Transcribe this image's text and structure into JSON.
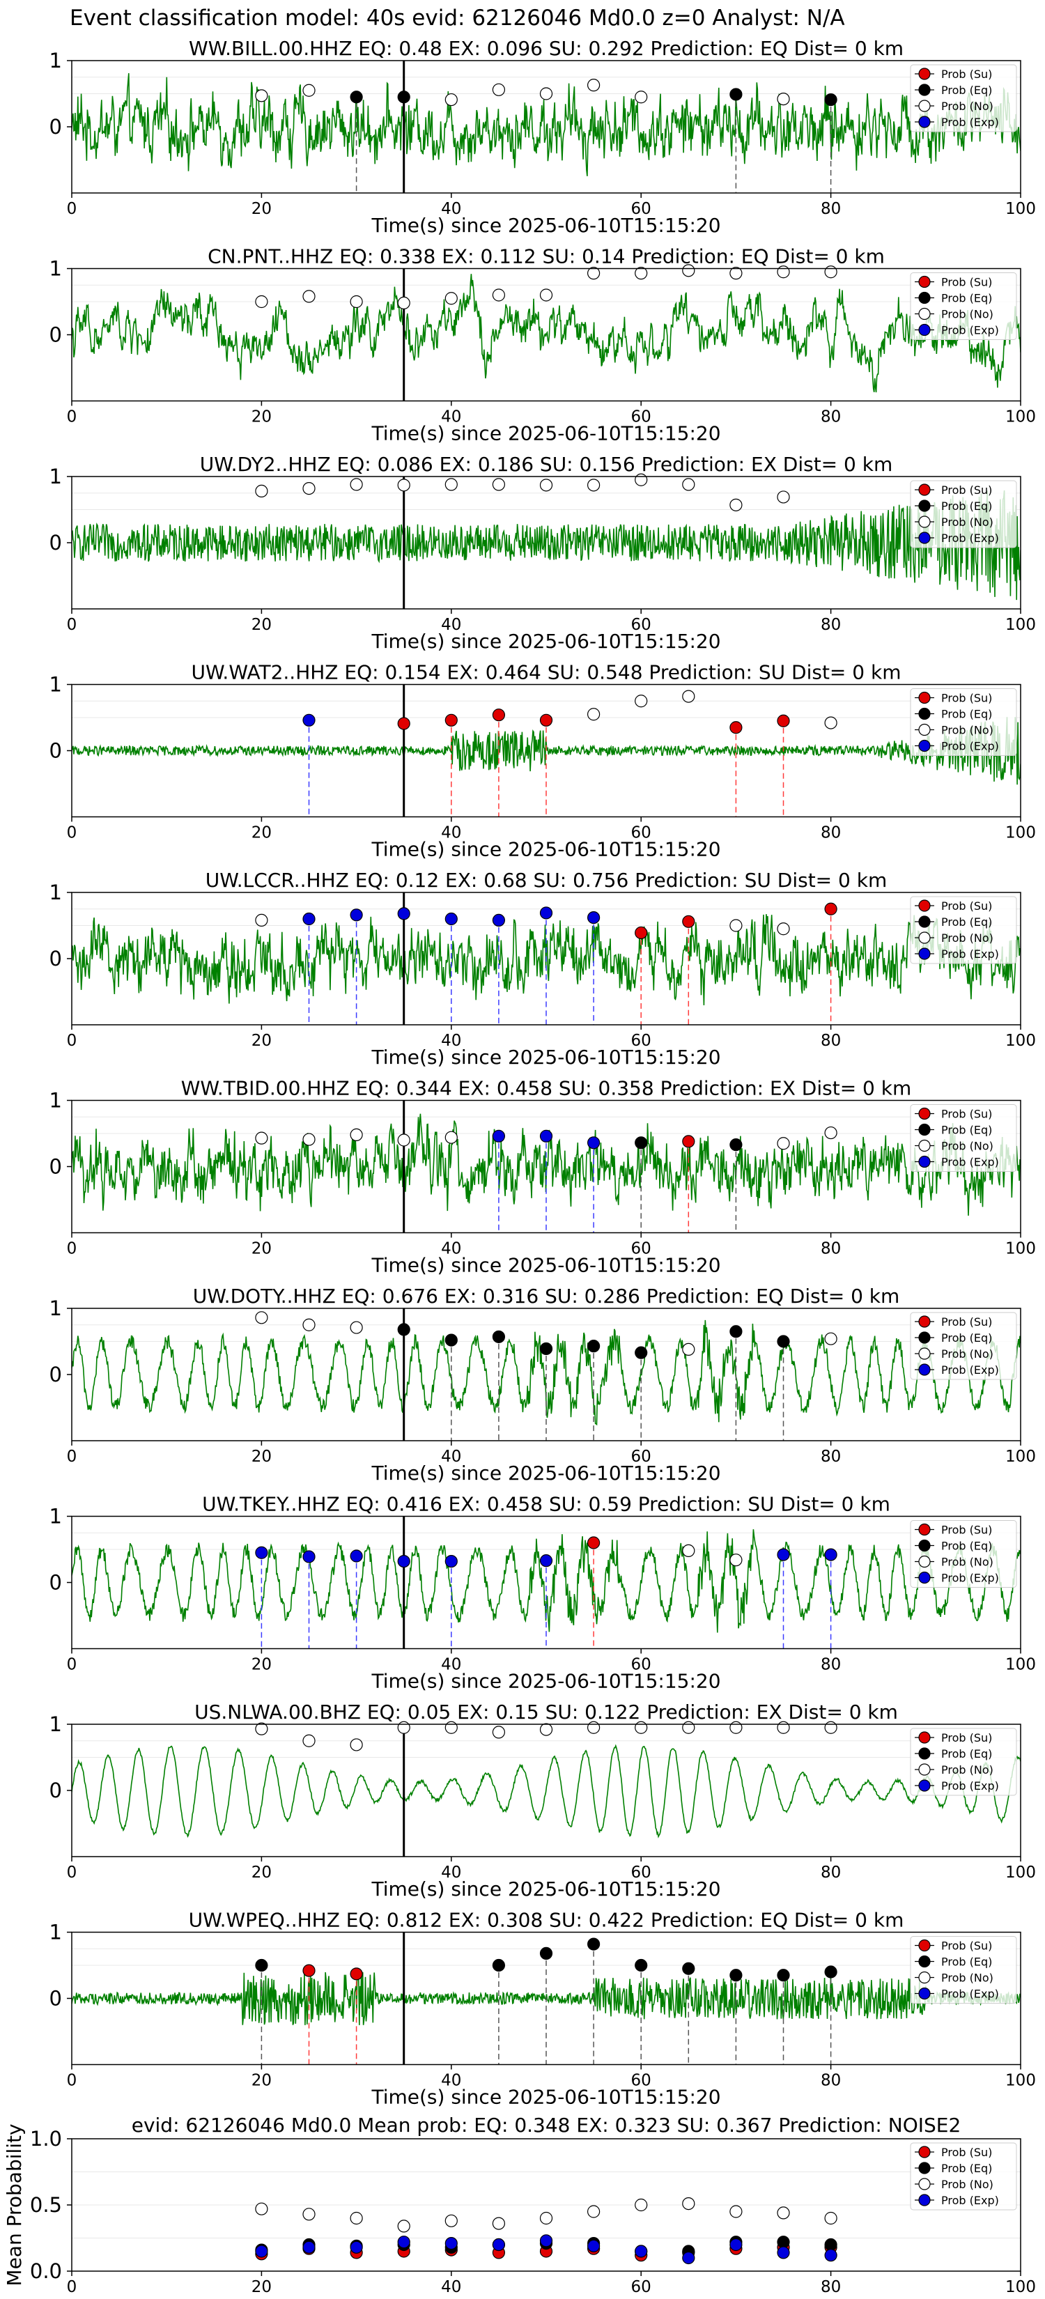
{
  "figure": {
    "suptitle": "Event classification model: 40s evid: 62126046 Md0.0 z=0 Analyst: N/A"
  },
  "legend_labels": [
    "Prob (Su)",
    "Prob (Eq)",
    "Prob (No)",
    "Prob (Exp)"
  ],
  "colors": {
    "su": "#e00000",
    "eq": "#000000",
    "no": "#ffffff",
    "exp": "#0000dd",
    "waveform": "#008000",
    "pick": "#000000"
  },
  "xlabel": "Time(s) since 2025-06-10T15:15:20",
  "chart_data": [
    {
      "type": "line",
      "title": "WW.BILL.00.HHZ   EQ: 0.48  EX: 0.096  SU: 0.292   Prediction: EQ    Dist= 0 km",
      "xlabel": "Time(s) since 2025-06-10T15:15:20",
      "xlim": [
        0,
        100
      ],
      "ylim": [
        -1,
        1
      ],
      "yticks": [
        0,
        1
      ],
      "xticks": [
        0,
        20,
        40,
        60,
        80,
        100
      ],
      "pick_time": 35,
      "waveform_style": "noisy",
      "legend": [
        "Prob (Su)",
        "Prob (Eq)",
        "Prob (No)",
        "Prob (Exp)"
      ],
      "points": [
        {
          "x": 20,
          "y": 0.47,
          "c": "no"
        },
        {
          "x": 25,
          "y": 0.55,
          "c": "no"
        },
        {
          "x": 30,
          "y": 0.45,
          "c": "eq"
        },
        {
          "x": 35,
          "y": 0.45,
          "c": "eq"
        },
        {
          "x": 40,
          "y": 0.41,
          "c": "no"
        },
        {
          "x": 45,
          "y": 0.56,
          "c": "no"
        },
        {
          "x": 50,
          "y": 0.5,
          "c": "no"
        },
        {
          "x": 55,
          "y": 0.63,
          "c": "no"
        },
        {
          "x": 60,
          "y": 0.45,
          "c": "no"
        },
        {
          "x": 70,
          "y": 0.49,
          "c": "eq"
        },
        {
          "x": 75,
          "y": 0.42,
          "c": "no"
        },
        {
          "x": 80,
          "y": 0.41,
          "c": "eq"
        }
      ]
    },
    {
      "type": "line",
      "title": "CN.PNT..HHZ   EQ: 0.338  EX: 0.112  SU: 0.14   Prediction: EQ    Dist= 0 km",
      "xlabel": "Time(s) since 2025-06-10T15:15:20",
      "xlim": [
        0,
        100
      ],
      "ylim": [
        -1,
        1
      ],
      "yticks": [
        0,
        1
      ],
      "xticks": [
        0,
        20,
        40,
        60,
        80,
        100
      ],
      "pick_time": 35,
      "waveform_style": "lowfreq",
      "legend": [
        "Prob (Su)",
        "Prob (Eq)",
        "Prob (No)",
        "Prob (Exp)"
      ],
      "points": [
        {
          "x": 20,
          "y": 0.5,
          "c": "no"
        },
        {
          "x": 25,
          "y": 0.58,
          "c": "no"
        },
        {
          "x": 30,
          "y": 0.5,
          "c": "no"
        },
        {
          "x": 35,
          "y": 0.48,
          "c": "no"
        },
        {
          "x": 40,
          "y": 0.55,
          "c": "no"
        },
        {
          "x": 45,
          "y": 0.6,
          "c": "no"
        },
        {
          "x": 50,
          "y": 0.6,
          "c": "no"
        },
        {
          "x": 55,
          "y": 0.93,
          "c": "no"
        },
        {
          "x": 60,
          "y": 0.93,
          "c": "no"
        },
        {
          "x": 65,
          "y": 0.97,
          "c": "no"
        },
        {
          "x": 70,
          "y": 0.93,
          "c": "no"
        },
        {
          "x": 75,
          "y": 0.95,
          "c": "no"
        },
        {
          "x": 80,
          "y": 0.95,
          "c": "no"
        }
      ]
    },
    {
      "type": "line",
      "title": "UW.DY2..HHZ   EQ: 0.086  EX: 0.186  SU: 0.156   Prediction: EX    Dist= 0 km",
      "xlabel": "Time(s) since 2025-06-10T15:15:20",
      "xlim": [
        0,
        100
      ],
      "ylim": [
        -1,
        1
      ],
      "yticks": [
        0,
        1
      ],
      "xticks": [
        0,
        20,
        40,
        60,
        80,
        100
      ],
      "pick_time": 35,
      "waveform_style": "growing",
      "legend": [
        "Prob (Su)",
        "Prob (Eq)",
        "Prob (No)",
        "Prob (Exp)"
      ],
      "points": [
        {
          "x": 20,
          "y": 0.78,
          "c": "no"
        },
        {
          "x": 25,
          "y": 0.82,
          "c": "no"
        },
        {
          "x": 30,
          "y": 0.88,
          "c": "no"
        },
        {
          "x": 35,
          "y": 0.87,
          "c": "no"
        },
        {
          "x": 40,
          "y": 0.88,
          "c": "no"
        },
        {
          "x": 45,
          "y": 0.88,
          "c": "no"
        },
        {
          "x": 50,
          "y": 0.87,
          "c": "no"
        },
        {
          "x": 55,
          "y": 0.87,
          "c": "no"
        },
        {
          "x": 60,
          "y": 0.95,
          "c": "no"
        },
        {
          "x": 65,
          "y": 0.88,
          "c": "no"
        },
        {
          "x": 70,
          "y": 0.57,
          "c": "no"
        },
        {
          "x": 75,
          "y": 0.69,
          "c": "no"
        }
      ]
    },
    {
      "type": "line",
      "title": "UW.WAT2..HHZ   EQ: 0.154  EX: 0.464  SU: 0.548   Prediction: SU    Dist= 0 km",
      "xlabel": "Time(s) since 2025-06-10T15:15:20",
      "xlim": [
        0,
        100
      ],
      "ylim": [
        -1,
        1
      ],
      "yticks": [
        0,
        1
      ],
      "xticks": [
        0,
        20,
        40,
        60,
        80,
        100
      ],
      "pick_time": 35,
      "waveform_style": "quiet",
      "legend": [
        "Prob (Su)",
        "Prob (Eq)",
        "Prob (No)",
        "Prob (Exp)"
      ],
      "points": [
        {
          "x": 25,
          "y": 0.46,
          "c": "exp"
        },
        {
          "x": 35,
          "y": 0.41,
          "c": "su"
        },
        {
          "x": 40,
          "y": 0.46,
          "c": "su"
        },
        {
          "x": 45,
          "y": 0.54,
          "c": "su"
        },
        {
          "x": 50,
          "y": 0.46,
          "c": "su"
        },
        {
          "x": 55,
          "y": 0.55,
          "c": "no"
        },
        {
          "x": 60,
          "y": 0.75,
          "c": "no"
        },
        {
          "x": 65,
          "y": 0.82,
          "c": "no"
        },
        {
          "x": 70,
          "y": 0.35,
          "c": "su"
        },
        {
          "x": 75,
          "y": 0.45,
          "c": "su"
        },
        {
          "x": 80,
          "y": 0.42,
          "c": "no"
        }
      ]
    },
    {
      "type": "line",
      "title": "UW.LCCR..HHZ   EQ: 0.12  EX: 0.68  SU: 0.756   Prediction: SU    Dist= 0 km",
      "xlabel": "Time(s) since 2025-06-10T15:15:20",
      "xlim": [
        0,
        100
      ],
      "ylim": [
        -1,
        1
      ],
      "yticks": [
        0,
        1
      ],
      "xticks": [
        0,
        20,
        40,
        60,
        80,
        100
      ],
      "pick_time": 35,
      "waveform_style": "noisy",
      "legend": [
        "Prob (Su)",
        "Prob (Eq)",
        "Prob (No)",
        "Prob (Exp)"
      ],
      "points": [
        {
          "x": 20,
          "y": 0.58,
          "c": "no"
        },
        {
          "x": 25,
          "y": 0.6,
          "c": "exp"
        },
        {
          "x": 30,
          "y": 0.66,
          "c": "exp"
        },
        {
          "x": 35,
          "y": 0.68,
          "c": "exp"
        },
        {
          "x": 40,
          "y": 0.6,
          "c": "exp"
        },
        {
          "x": 45,
          "y": 0.58,
          "c": "exp"
        },
        {
          "x": 50,
          "y": 0.69,
          "c": "exp"
        },
        {
          "x": 55,
          "y": 0.62,
          "c": "exp"
        },
        {
          "x": 60,
          "y": 0.39,
          "c": "su"
        },
        {
          "x": 65,
          "y": 0.56,
          "c": "su"
        },
        {
          "x": 70,
          "y": 0.5,
          "c": "no"
        },
        {
          "x": 75,
          "y": 0.45,
          "c": "no"
        },
        {
          "x": 80,
          "y": 0.75,
          "c": "su"
        }
      ]
    },
    {
      "type": "line",
      "title": "WW.TBID.00.HHZ   EQ: 0.344  EX: 0.458  SU: 0.358   Prediction: EX    Dist= 0 km",
      "xlabel": "Time(s) since 2025-06-10T15:15:20",
      "xlim": [
        0,
        100
      ],
      "ylim": [
        -1,
        1
      ],
      "yticks": [
        0,
        1
      ],
      "xticks": [
        0,
        20,
        40,
        60,
        80,
        100
      ],
      "pick_time": 35,
      "waveform_style": "noisy",
      "legend": [
        "Prob (Su)",
        "Prob (Eq)",
        "Prob (No)",
        "Prob (Exp)"
      ],
      "points": [
        {
          "x": 20,
          "y": 0.43,
          "c": "no"
        },
        {
          "x": 25,
          "y": 0.41,
          "c": "no"
        },
        {
          "x": 30,
          "y": 0.48,
          "c": "no"
        },
        {
          "x": 35,
          "y": 0.4,
          "c": "no"
        },
        {
          "x": 40,
          "y": 0.44,
          "c": "no"
        },
        {
          "x": 45,
          "y": 0.46,
          "c": "exp"
        },
        {
          "x": 50,
          "y": 0.46,
          "c": "exp"
        },
        {
          "x": 55,
          "y": 0.36,
          "c": "exp"
        },
        {
          "x": 60,
          "y": 0.36,
          "c": "eq"
        },
        {
          "x": 65,
          "y": 0.38,
          "c": "su"
        },
        {
          "x": 70,
          "y": 0.33,
          "c": "eq"
        },
        {
          "x": 75,
          "y": 0.35,
          "c": "no"
        },
        {
          "x": 80,
          "y": 0.51,
          "c": "no"
        }
      ]
    },
    {
      "type": "line",
      "title": "UW.DOTY..HHZ   EQ: 0.676  EX: 0.316  SU: 0.286   Prediction: EQ    Dist= 0 km",
      "xlabel": "Time(s) since 2025-06-10T15:15:20",
      "xlim": [
        0,
        100
      ],
      "ylim": [
        -1,
        1
      ],
      "yticks": [
        0,
        1
      ],
      "xticks": [
        0,
        20,
        40,
        60,
        80,
        100
      ],
      "pick_time": 35,
      "waveform_style": "swell",
      "legend": [
        "Prob (Su)",
        "Prob (Eq)",
        "Prob (No)",
        "Prob (Exp)"
      ],
      "points": [
        {
          "x": 20,
          "y": 0.86,
          "c": "no"
        },
        {
          "x": 25,
          "y": 0.75,
          "c": "no"
        },
        {
          "x": 30,
          "y": 0.71,
          "c": "no"
        },
        {
          "x": 35,
          "y": 0.68,
          "c": "eq"
        },
        {
          "x": 40,
          "y": 0.52,
          "c": "eq"
        },
        {
          "x": 45,
          "y": 0.57,
          "c": "eq"
        },
        {
          "x": 50,
          "y": 0.39,
          "c": "eq"
        },
        {
          "x": 55,
          "y": 0.43,
          "c": "eq"
        },
        {
          "x": 60,
          "y": 0.33,
          "c": "eq"
        },
        {
          "x": 65,
          "y": 0.38,
          "c": "no"
        },
        {
          "x": 70,
          "y": 0.65,
          "c": "eq"
        },
        {
          "x": 75,
          "y": 0.5,
          "c": "eq"
        },
        {
          "x": 80,
          "y": 0.54,
          "c": "no"
        }
      ]
    },
    {
      "type": "line",
      "title": "UW.TKEY..HHZ   EQ: 0.416  EX: 0.458  SU: 0.59   Prediction: SU    Dist= 0 km",
      "xlabel": "Time(s) since 2025-06-10T15:15:20",
      "xlim": [
        0,
        100
      ],
      "ylim": [
        -1,
        1
      ],
      "yticks": [
        0,
        1
      ],
      "xticks": [
        0,
        20,
        40,
        60,
        80,
        100
      ],
      "pick_time": 35,
      "waveform_style": "swell",
      "legend": [
        "Prob (Su)",
        "Prob (Eq)",
        "Prob (No)",
        "Prob (Exp)"
      ],
      "points": [
        {
          "x": 20,
          "y": 0.45,
          "c": "exp"
        },
        {
          "x": 25,
          "y": 0.39,
          "c": "exp"
        },
        {
          "x": 30,
          "y": 0.4,
          "c": "exp"
        },
        {
          "x": 35,
          "y": 0.32,
          "c": "exp"
        },
        {
          "x": 40,
          "y": 0.32,
          "c": "exp"
        },
        {
          "x": 50,
          "y": 0.33,
          "c": "exp"
        },
        {
          "x": 55,
          "y": 0.6,
          "c": "su"
        },
        {
          "x": 65,
          "y": 0.48,
          "c": "no"
        },
        {
          "x": 70,
          "y": 0.34,
          "c": "no"
        },
        {
          "x": 75,
          "y": 0.42,
          "c": "exp"
        },
        {
          "x": 80,
          "y": 0.42,
          "c": "exp"
        }
      ]
    },
    {
      "type": "line",
      "title": "US.NLWA.00.BHZ   EQ: 0.05  EX: 0.15  SU: 0.122   Prediction: EX    Dist= 0 km",
      "xlabel": "Time(s) since 2025-06-10T15:15:20",
      "xlim": [
        0,
        100
      ],
      "ylim": [
        -1,
        1
      ],
      "yticks": [
        0,
        1
      ],
      "xticks": [
        0,
        20,
        40,
        60,
        80,
        100
      ],
      "pick_time": 35,
      "waveform_style": "microseism",
      "legend": [
        "Prob (Su)",
        "Prob (Eq)",
        "Prob (No)",
        "Prob (Exp)"
      ],
      "points": [
        {
          "x": 20,
          "y": 0.93,
          "c": "no"
        },
        {
          "x": 25,
          "y": 0.75,
          "c": "no"
        },
        {
          "x": 30,
          "y": 0.69,
          "c": "no"
        },
        {
          "x": 35,
          "y": 0.95,
          "c": "no"
        },
        {
          "x": 40,
          "y": 0.95,
          "c": "no"
        },
        {
          "x": 45,
          "y": 0.88,
          "c": "no"
        },
        {
          "x": 50,
          "y": 0.92,
          "c": "no"
        },
        {
          "x": 55,
          "y": 0.95,
          "c": "no"
        },
        {
          "x": 60,
          "y": 0.95,
          "c": "no"
        },
        {
          "x": 65,
          "y": 0.95,
          "c": "no"
        },
        {
          "x": 70,
          "y": 0.95,
          "c": "no"
        },
        {
          "x": 75,
          "y": 0.95,
          "c": "no"
        },
        {
          "x": 80,
          "y": 0.95,
          "c": "no"
        }
      ]
    },
    {
      "type": "line",
      "title": "UW.WPEQ..HHZ   EQ: 0.812  EX: 0.308  SU: 0.422   Prediction: EQ    Dist= 0 km",
      "xlabel": "Time(s) since 2025-06-10T15:15:20",
      "xlim": [
        0,
        100
      ],
      "ylim": [
        -1,
        1
      ],
      "yticks": [
        0,
        1
      ],
      "xticks": [
        0,
        20,
        40,
        60,
        80,
        100
      ],
      "pick_time": 35,
      "waveform_style": "burst",
      "legend": [
        "Prob (Su)",
        "Prob (Eq)",
        "Prob (No)",
        "Prob (Exp)"
      ],
      "points": [
        {
          "x": 20,
          "y": 0.5,
          "c": "eq"
        },
        {
          "x": 25,
          "y": 0.42,
          "c": "su"
        },
        {
          "x": 30,
          "y": 0.37,
          "c": "su"
        },
        {
          "x": 45,
          "y": 0.5,
          "c": "eq"
        },
        {
          "x": 50,
          "y": 0.68,
          "c": "eq"
        },
        {
          "x": 55,
          "y": 0.82,
          "c": "eq"
        },
        {
          "x": 60,
          "y": 0.5,
          "c": "eq"
        },
        {
          "x": 65,
          "y": 0.45,
          "c": "eq"
        },
        {
          "x": 70,
          "y": 0.35,
          "c": "eq"
        },
        {
          "x": 75,
          "y": 0.35,
          "c": "eq"
        },
        {
          "x": 80,
          "y": 0.4,
          "c": "eq"
        }
      ]
    }
  ],
  "summary_chart": {
    "type": "scatter",
    "title": "evid: 62126046   Md0.0   Mean prob:   EQ: 0.348  EX: 0.323  SU: 0.367   Prediction: NOISE2",
    "ylabel": "Mean Probability",
    "xlim": [
      0,
      100
    ],
    "ylim": [
      0,
      1
    ],
    "yticks": [
      "0.0",
      "0.5",
      "1.0"
    ],
    "xticks": [
      0,
      20,
      40,
      60,
      80,
      100
    ],
    "x": [
      20,
      25,
      30,
      35,
      40,
      45,
      50,
      55,
      60,
      65,
      70,
      75,
      80
    ],
    "series": [
      {
        "name": "Prob (Su)",
        "c": "su",
        "values": [
          0.13,
          0.17,
          0.14,
          0.15,
          0.16,
          0.14,
          0.15,
          0.17,
          0.12,
          0.14,
          0.17,
          0.18,
          0.18
        ]
      },
      {
        "name": "Prob (Eq)",
        "c": "eq",
        "values": [
          0.16,
          0.2,
          0.19,
          0.2,
          0.18,
          0.2,
          0.21,
          0.21,
          0.15,
          0.15,
          0.22,
          0.22,
          0.2
        ]
      },
      {
        "name": "Prob (No)",
        "c": "no",
        "values": [
          0.47,
          0.43,
          0.4,
          0.34,
          0.38,
          0.36,
          0.4,
          0.45,
          0.5,
          0.51,
          0.45,
          0.44,
          0.4
        ]
      },
      {
        "name": "Prob (Exp)",
        "c": "exp",
        "values": [
          0.15,
          0.18,
          0.18,
          0.22,
          0.21,
          0.2,
          0.23,
          0.19,
          0.15,
          0.1,
          0.2,
          0.14,
          0.12
        ]
      }
    ]
  }
}
